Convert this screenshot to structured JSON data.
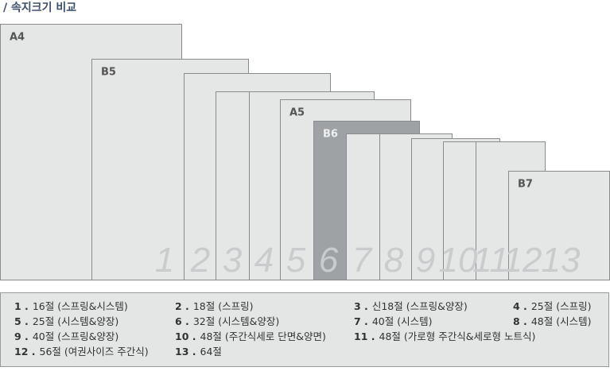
{
  "header": {
    "title": "/ 속지크기 비교"
  },
  "sizes": [
    "A4",
    "B5",
    "A5",
    "B6",
    "B7"
  ],
  "columns": [
    "1",
    "2",
    "3",
    "4",
    "5",
    "6",
    "7",
    "8",
    "9",
    "10",
    "11",
    "12",
    "13"
  ],
  "legend": [
    [
      {
        "num": "1 .",
        "text": "16절 (스프링&시스템)"
      },
      {
        "num": "2 .",
        "text": "18절 (스프링)"
      },
      {
        "num": "3 .",
        "text": "신18절 (스프링&양장)"
      },
      {
        "num": "4 .",
        "text": "25절 (스프링)"
      }
    ],
    [
      {
        "num": "5 .",
        "text": "25절 (시스템&양장)"
      },
      {
        "num": "6 .",
        "text": "32절 (시스템&양장)"
      },
      {
        "num": "7 .",
        "text": "40절 (시스템)"
      },
      {
        "num": "8 .",
        "text": "48절 (시스템)"
      }
    ],
    [
      {
        "num": "9 .",
        "text": "40절 (스프링&양장)"
      },
      {
        "num": "10 .",
        "text": "48절 (주간식세로 단면&양면)"
      },
      {
        "num": "11 .",
        "text": "48절 (가로형 주간식&세로형 노트식)"
      }
    ],
    [
      {
        "num": "12 .",
        "text": "56절 (여권사이즈 주간식)"
      },
      {
        "num": "13 .",
        "text": "64절"
      }
    ]
  ]
}
